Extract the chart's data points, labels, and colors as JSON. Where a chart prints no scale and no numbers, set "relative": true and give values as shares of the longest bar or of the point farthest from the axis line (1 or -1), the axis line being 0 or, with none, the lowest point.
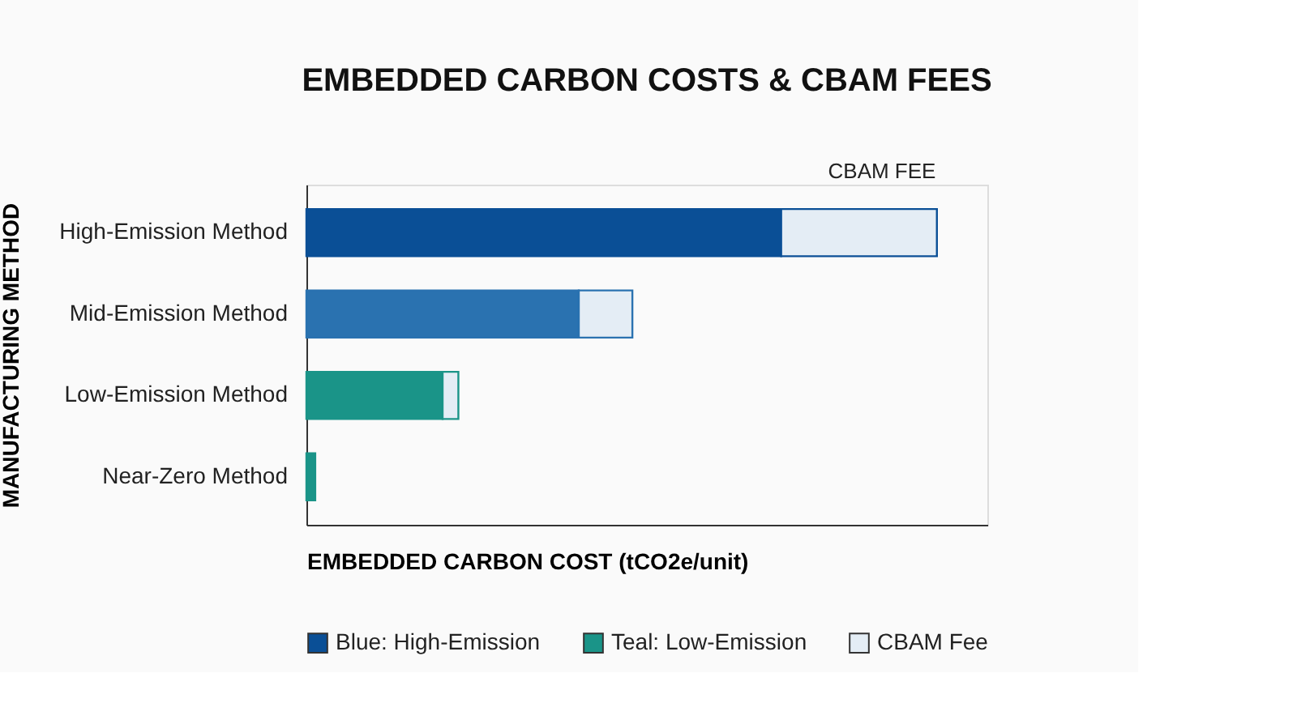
{
  "chart_data": {
    "type": "bar",
    "orientation": "horizontal",
    "stacked": true,
    "relative": true,
    "title": "EMBEDDED CARBON COSTS & CBAM FEES",
    "xlabel": "EMBEDDED CARBON COST (tCO2e/unit)",
    "ylabel": "MANUFACTURING METHOD",
    "categories": [
      "High-Emission Method",
      "Mid-Emission Method",
      "Low-Emission Method",
      "Near-Zero Method"
    ],
    "series": [
      {
        "name": "Blue: High-Emission",
        "colors": [
          "#0a4f96",
          "#2a72b0",
          null,
          null
        ],
        "values": [
          0.753,
          0.432,
          null,
          null
        ]
      },
      {
        "name": "Teal: Low-Emission",
        "colors": [
          null,
          null,
          "#1a9488",
          "#1a9488"
        ],
        "values": [
          null,
          null,
          0.216,
          0.014
        ]
      },
      {
        "name": "CBAM Fee",
        "color": "#e4edf5",
        "values": [
          0.247,
          0.085,
          0.025,
          null
        ]
      }
    ],
    "annotations": [
      "CBAM FEE"
    ],
    "legend": "bottom",
    "grid": false
  }
}
